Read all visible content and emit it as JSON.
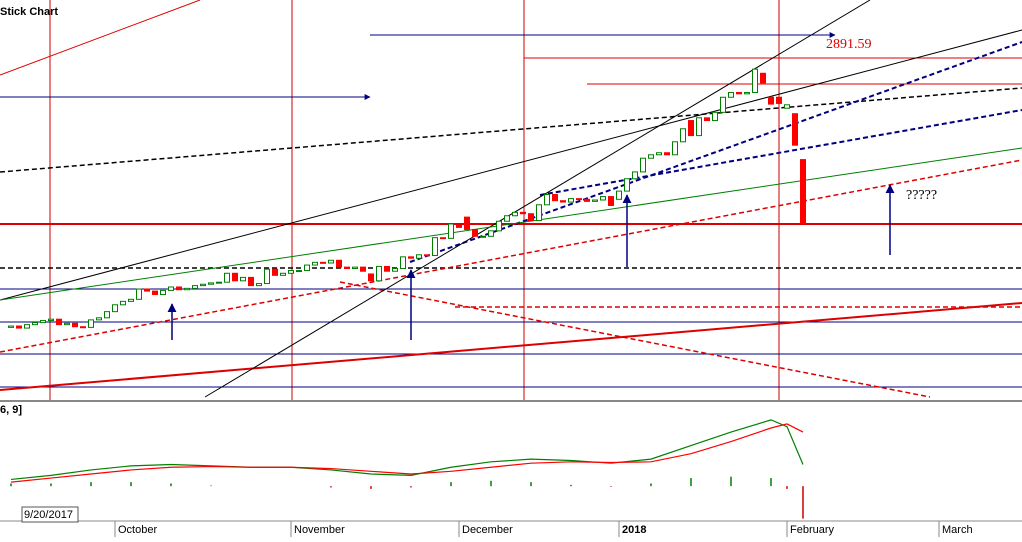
{
  "chart_data": [
    {
      "type": "candlestick",
      "title": "Stick Chart",
      "open": [
        2496,
        2498,
        2495,
        2500,
        2503,
        2506,
        2508,
        2500,
        2502,
        2497,
        2496,
        2507,
        2510,
        2519,
        2529,
        2534,
        2537,
        2552,
        2549,
        2544,
        2550,
        2555,
        2551,
        2553,
        2557,
        2559,
        2561,
        2562,
        2575,
        2564,
        2569,
        2557,
        2560,
        2581,
        2572,
        2575,
        2579,
        2579,
        2587,
        2591,
        2590,
        2594,
        2584,
        2582,
        2584,
        2574,
        2564,
        2585,
        2578,
        2582,
        2599,
        2597,
        2602,
        2601,
        2627,
        2626,
        2645,
        2657,
        2639,
        2629,
        2629,
        2637,
        2651,
        2659,
        2664,
        2662,
        2652,
        2675,
        2690,
        2681,
        2679,
        2684,
        2683,
        2680,
        2682,
        2687,
        2683,
        2695,
        2713,
        2723,
        2743,
        2748,
        2751,
        2748,
        2767,
        2798,
        2776,
        2802,
        2798,
        2810,
        2832,
        2839,
        2837,
        2839,
        2867,
        2832,
        2832,
        2816,
        2808,
        2741
      ],
      "close": [
        2498,
        2495,
        2500,
        2503,
        2506,
        2508,
        2500,
        2502,
        2497,
        2496,
        2507,
        2510,
        2519,
        2529,
        2534,
        2537,
        2552,
        2549,
        2544,
        2550,
        2555,
        2551,
        2553,
        2557,
        2559,
        2561,
        2562,
        2575,
        2564,
        2569,
        2557,
        2560,
        2581,
        2572,
        2575,
        2579,
        2579,
        2587,
        2591,
        2590,
        2594,
        2584,
        2582,
        2584,
        2578,
        2564,
        2585,
        2578,
        2582,
        2599,
        2597,
        2602,
        2601,
        2627,
        2626,
        2647,
        2642,
        2639,
        2629,
        2629,
        2637,
        2651,
        2659,
        2664,
        2662,
        2652,
        2675,
        2690,
        2681,
        2679,
        2684,
        2683,
        2680,
        2682,
        2687,
        2674,
        2695,
        2713,
        2723,
        2743,
        2748,
        2751,
        2748,
        2767,
        2786,
        2776,
        2802,
        2798,
        2810,
        2832,
        2839,
        2837,
        2839,
        2873,
        2853,
        2822,
        2823,
        2821,
        2762,
        2648
      ],
      "up_color": "#008000",
      "down_color": "#ff0000",
      "ylim": [
        2390,
        2974
      ],
      "xticks": [
        {
          "value": 13,
          "label": "October"
        },
        {
          "value": 35,
          "label": "November"
        },
        {
          "value": 56,
          "label": "December"
        },
        {
          "value": 76,
          "label": "2018"
        },
        {
          "value": 97,
          "label": "February"
        },
        {
          "value": 116,
          "label": "March"
        }
      ],
      "annotations": [
        "2891.59",
        "?????"
      ],
      "cursor_label": "9/20/2017"
    },
    {
      "type": "line",
      "title": "6, 9]",
      "x": [
        0,
        5,
        10,
        15,
        20,
        25,
        30,
        35,
        40,
        45,
        50,
        55,
        60,
        65,
        70,
        75,
        80,
        85,
        90,
        95,
        97,
        99
      ],
      "series": [
        {
          "color": "#008000",
          "values": [
            5,
            8,
            12,
            15,
            16,
            15,
            14,
            14,
            12,
            9,
            8,
            14,
            18,
            20,
            19,
            17,
            20,
            30,
            40,
            49,
            44,
            16
          ]
        },
        {
          "color": "#ff0000",
          "values": [
            3,
            6,
            9,
            12,
            14,
            14.5,
            14,
            14,
            13,
            11,
            9,
            11,
            14,
            17,
            18,
            17.5,
            18,
            24,
            33,
            43,
            46,
            40
          ]
        }
      ],
      "bars": {
        "color": "#008000",
        "values": [
          2,
          2,
          3,
          3,
          2,
          0.5,
          0,
          0,
          -1,
          -2,
          -1,
          3,
          4,
          3,
          1,
          -0.5,
          2,
          6,
          7,
          6,
          -2,
          -24
        ]
      },
      "ylim": [
        -25,
        60
      ]
    }
  ]
}
